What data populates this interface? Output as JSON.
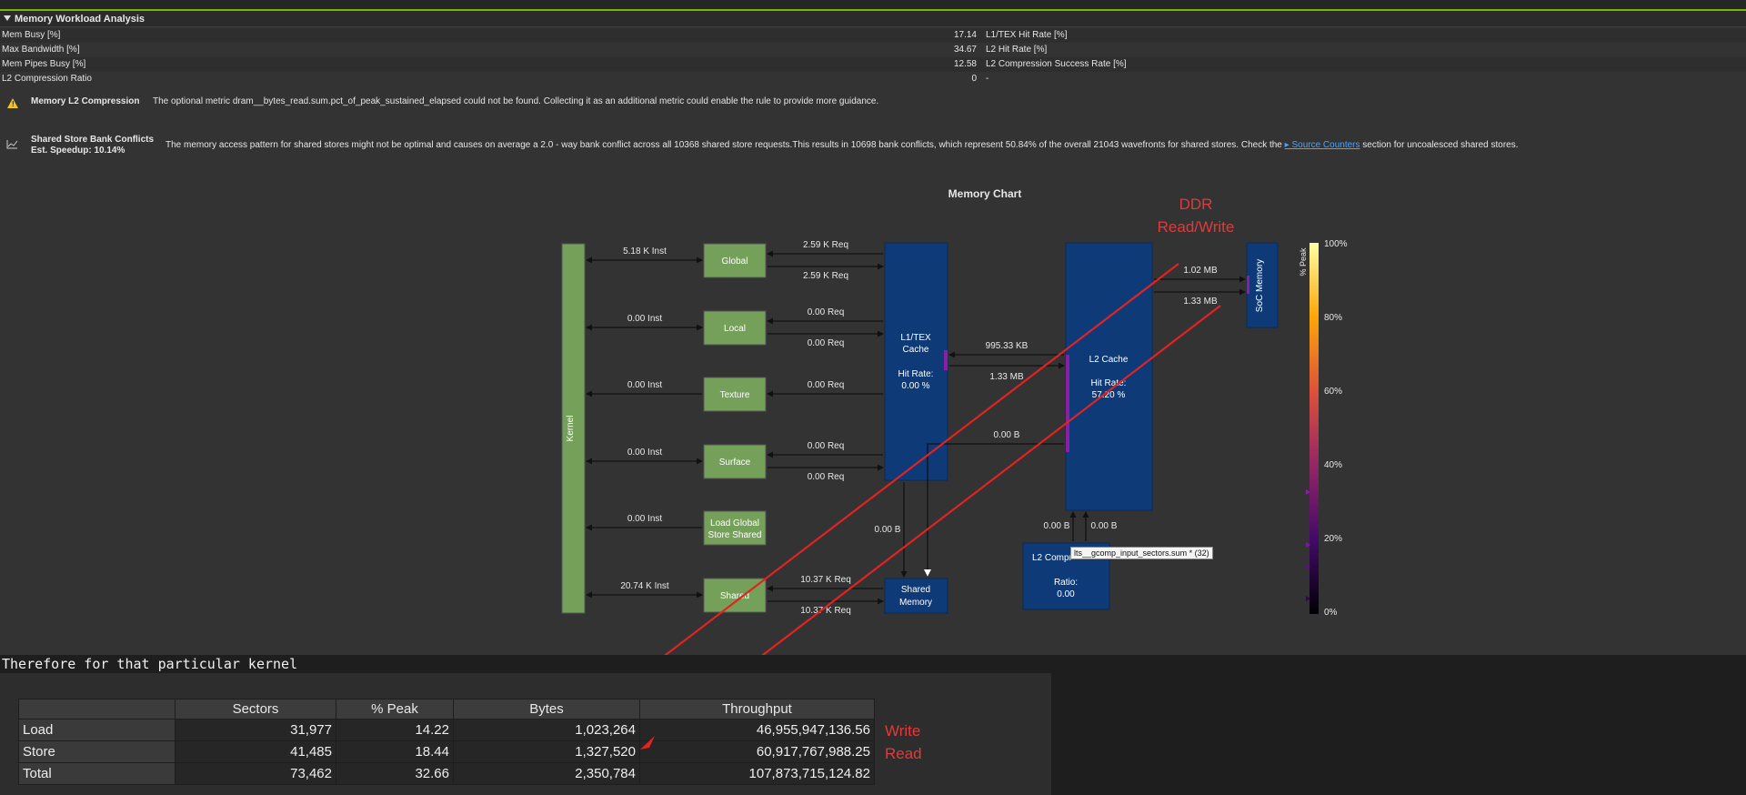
{
  "section": {
    "title": "Memory Workload Analysis"
  },
  "metrics": [
    {
      "left_name": "Mem Busy [%]",
      "left_value": "17.14",
      "right_name": "L1/TEX Hit Rate [%]"
    },
    {
      "left_name": "Max Bandwidth [%]",
      "left_value": "34.67",
      "right_name": "L2 Hit Rate [%]"
    },
    {
      "left_name": "Mem Pipes Busy [%]",
      "left_value": "12.58",
      "right_name": "L2 Compression Success Rate [%]"
    },
    {
      "left_name": "L2 Compression Ratio",
      "left_value": "0",
      "right_name": "-"
    }
  ],
  "rules": {
    "l2": {
      "title": "Memory L2 Compression",
      "text": "The optional metric dram__bytes_read.sum.pct_of_peak_sustained_elapsed could not be found. Collecting it as an additional metric could enable the rule to provide more guidance.",
      "icon": "warning-icon"
    },
    "bank": {
      "title": "Shared Store Bank Conflicts",
      "speedup": "Est. Speedup: 10.14%",
      "text": "The memory access pattern for shared stores might not be optimal and causes on average a 2.0 - way bank conflict across all 10368 shared store requests.This results in 10698 bank conflicts, which represent 50.84% of the overall 21043 wavefronts for shared stores. Check the",
      "link": "Source Counters",
      "text_after": "section for uncoalesced shared stores.",
      "icon": "chart-icon"
    }
  },
  "memory_chart": {
    "title": "Memory Chart",
    "kernel": "Kernel",
    "units": {
      "global": "Global",
      "local": "Local",
      "texture": "Texture",
      "surface": "Surface",
      "lgss": [
        "Load Global",
        "Store Shared"
      ],
      "shared": "Shared"
    },
    "inst": {
      "global": "5.18 K Inst",
      "local": "0.00 Inst",
      "texture": "0.00 Inst",
      "surface": "0.00 Inst",
      "lgss": "0.00 Inst",
      "shared": "20.74 K Inst"
    },
    "req": {
      "global_1": "2.59 K Req",
      "global_2": "2.59 K Req",
      "local_1": "0.00 Req",
      "local_2": "0.00 Req",
      "texture": "0.00 Req",
      "surface_1": "0.00 Req",
      "surface_2": "0.00 Req",
      "shared_1": "10.37 K Req",
      "shared_2": "10.37 K Req"
    },
    "l1": [
      "L1/TEX",
      "Cache",
      "Hit Rate:",
      "0.00 %"
    ],
    "l2": [
      "L2 Cache",
      "Hit Rate:",
      "57.20 %"
    ],
    "smem": [
      "Shared",
      "Memory"
    ],
    "l2comp": [
      "L2 Compr",
      "Ratio:",
      "0.00"
    ],
    "soc": "SoC Memory",
    "links": {
      "l1_l2_read": "995.33 KB",
      "l1_l2_write": "1.33 MB",
      "l2_soc_read": "1.02 MB",
      "l2_soc_write": "1.33 MB",
      "l1_l2_bypass": "0.00 B",
      "l1_smem": "0.00 B",
      "l2comp_1": "0.00 B",
      "l2comp_2": "0.00 B"
    },
    "legend": {
      "title": "% Peak",
      "ticks": [
        "100%",
        "80%",
        "60%",
        "40%",
        "20%",
        "0%"
      ]
    },
    "tooltip": "lts__gcomp_input_sectors.sum * (32)"
  },
  "annotations": {
    "ddr": [
      "DDR",
      "Read/Write"
    ],
    "write": "Write",
    "read": "Read",
    "color": "#e23a3a"
  },
  "bottom": {
    "heading": "Therefore for that particular kernel",
    "columns": [
      "",
      "Sectors",
      "% Peak",
      "Bytes",
      "Throughput"
    ],
    "rows": [
      [
        "Load",
        "31,977",
        "14.22",
        "1,023,264",
        "46,955,947,136.56"
      ],
      [
        "Store",
        "41,485",
        "18.44",
        "1,327,520",
        "60,917,767,988.25"
      ],
      [
        "Total",
        "73,462",
        "32.66",
        "2,350,784",
        "107,873,715,124.82"
      ]
    ]
  },
  "colors": {
    "accent": "#76b900",
    "unit_green": "#75a05a",
    "cache_blue": "#0e3a78",
    "highlight": "#8a1fa6"
  }
}
